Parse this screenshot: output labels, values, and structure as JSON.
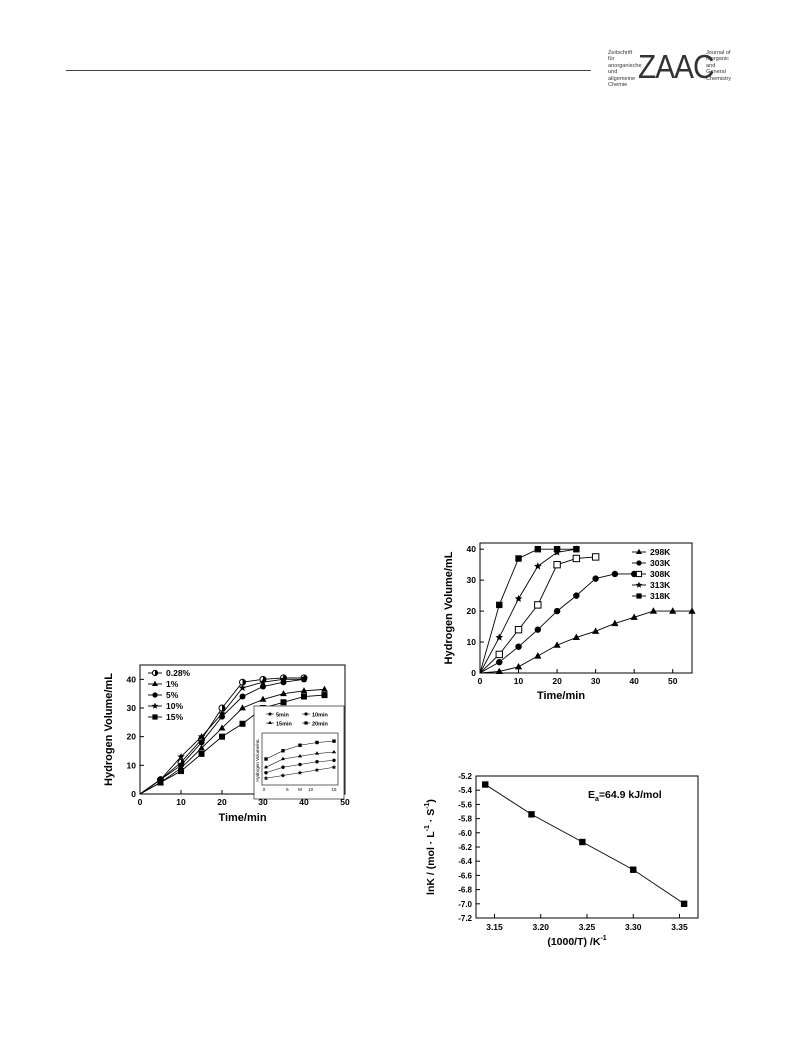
{
  "header": {
    "logo_big": "ZAAC",
    "logo_left_text": "Zeitschrift für\nanorganische\nund allgemeine\nChemie",
    "logo_right_text": "Journal of\nInorganic and\nGeneral\nChemistry"
  },
  "chart_data": [
    {
      "type": "line",
      "xlabel": "Time/min",
      "ylabel": "Hydrogen  Volume/mL",
      "xlim": [
        0,
        50
      ],
      "ylim": [
        0,
        45
      ],
      "xticks": [
        "0",
        "10",
        "20",
        "30",
        "40",
        "50"
      ],
      "yticks": [
        "0",
        "10",
        "20",
        "30",
        "40"
      ],
      "legend_position": "top-left",
      "series": [
        {
          "name": "0.28%",
          "marker": "half-circle",
          "x": [
            0,
            5,
            10,
            15,
            20,
            25,
            30,
            35,
            40
          ],
          "y": [
            0,
            5,
            11,
            19,
            30,
            39,
            40,
            40.5,
            40.5
          ]
        },
        {
          "name": "1%",
          "marker": "triangle",
          "x": [
            0,
            5,
            10,
            15,
            20,
            25,
            30,
            35,
            40,
            45
          ],
          "y": [
            0,
            4,
            9,
            16,
            23,
            30,
            33,
            35,
            36,
            36.5
          ]
        },
        {
          "name": "5%",
          "marker": "circle",
          "x": [
            0,
            5,
            10,
            15,
            20,
            25,
            30,
            35,
            40
          ],
          "y": [
            0,
            5,
            10,
            18,
            27,
            34,
            37.5,
            39,
            40
          ]
        },
        {
          "name": "10%",
          "marker": "star",
          "x": [
            0,
            5,
            10,
            15,
            20,
            25,
            30,
            35,
            40
          ],
          "y": [
            0,
            5,
            13,
            20,
            28,
            37,
            39,
            40,
            40
          ]
        },
        {
          "name": "15%",
          "marker": "square",
          "x": [
            0,
            5,
            10,
            15,
            20,
            25,
            30,
            35,
            40,
            45
          ],
          "y": [
            0,
            4,
            8,
            14,
            20,
            24.5,
            30,
            32,
            34,
            34.5
          ]
        }
      ],
      "inset": {
        "ylabel": "Hydrogen Volume/mL",
        "xlabel": "M",
        "xticks": [
          "0",
          "5",
          "10",
          "15"
        ],
        "legend": [
          "5min",
          "10min",
          "15min",
          "20min"
        ],
        "series": [
          {
            "name": "5min",
            "marker": "star",
            "y": [
              1,
              2,
              3,
              4,
              5
            ]
          },
          {
            "name": "10min",
            "marker": "circle",
            "y": [
              3,
              5,
              6,
              7,
              7.5
            ]
          },
          {
            "name": "15min",
            "marker": "triangle",
            "y": [
              5,
              8,
              9,
              10,
              10.5
            ]
          },
          {
            "name": "20min",
            "marker": "square",
            "y": [
              8,
              11,
              13,
              14,
              14.5
            ]
          }
        ]
      }
    },
    {
      "type": "line",
      "xlabel": "Time/min",
      "ylabel": "Hydrogen  Volume/mL",
      "xlim": [
        0,
        55
      ],
      "ylim": [
        0,
        42
      ],
      "xticks": [
        "0",
        "10",
        "20",
        "30",
        "40",
        "50"
      ],
      "yticks": [
        "0",
        "10",
        "20",
        "30",
        "40"
      ],
      "legend_position": "top-right",
      "series": [
        {
          "name": "298K",
          "marker": "triangle",
          "x": [
            0,
            5,
            10,
            15,
            20,
            25,
            30,
            35,
            40,
            45,
            50,
            55
          ],
          "y": [
            0,
            0.5,
            2,
            5.5,
            9,
            11.5,
            13.5,
            16,
            18,
            20,
            20,
            20
          ]
        },
        {
          "name": "303K",
          "marker": "circle",
          "x": [
            0,
            5,
            10,
            15,
            20,
            25,
            30,
            35,
            40
          ],
          "y": [
            0,
            3.5,
            8.5,
            14,
            20,
            25,
            30.5,
            32,
            32
          ]
        },
        {
          "name": "308K",
          "marker": "open-square",
          "x": [
            0,
            5,
            10,
            15,
            20,
            25,
            30
          ],
          "y": [
            0,
            6,
            14,
            22,
            35,
            37,
            37.5
          ]
        },
        {
          "name": "313K",
          "marker": "star",
          "x": [
            0,
            5,
            10,
            15,
            20,
            25
          ],
          "y": [
            0,
            11.5,
            24,
            34.5,
            39,
            40
          ]
        },
        {
          "name": "318K",
          "marker": "square",
          "x": [
            0,
            5,
            10,
            15,
            20,
            25
          ],
          "y": [
            0,
            22,
            37,
            40,
            40,
            40
          ]
        }
      ]
    },
    {
      "type": "scatter",
      "xlabel": "(1000/T) /K",
      "xlabel_sup": "-1",
      "ylabel": "lnK / (mol · L",
      "ylabel_sup1": "-1",
      "ylabel_mid": " · S",
      "ylabel_sup2": "-1",
      "ylabel_end": ")",
      "annotation": "E",
      "annotation_sub": "a",
      "annotation_rest": "=64.9 kJ/mol",
      "xlim": [
        3.13,
        3.37
      ],
      "ylim": [
        -7.2,
        -5.2
      ],
      "xticks": [
        "3.15",
        "3.20",
        "3.25",
        "3.30",
        "3.35"
      ],
      "yticks": [
        "-5.2",
        "-5.4",
        "-5.6",
        "-5.8",
        "-6.0",
        "-6.2",
        "-6.4",
        "-6.6",
        "-6.8",
        "-7.0",
        "-7.2"
      ],
      "x": [
        3.14,
        3.19,
        3.245,
        3.3,
        3.355
      ],
      "y": [
        -5.32,
        -5.74,
        -6.13,
        -6.52,
        -7.0
      ]
    }
  ]
}
